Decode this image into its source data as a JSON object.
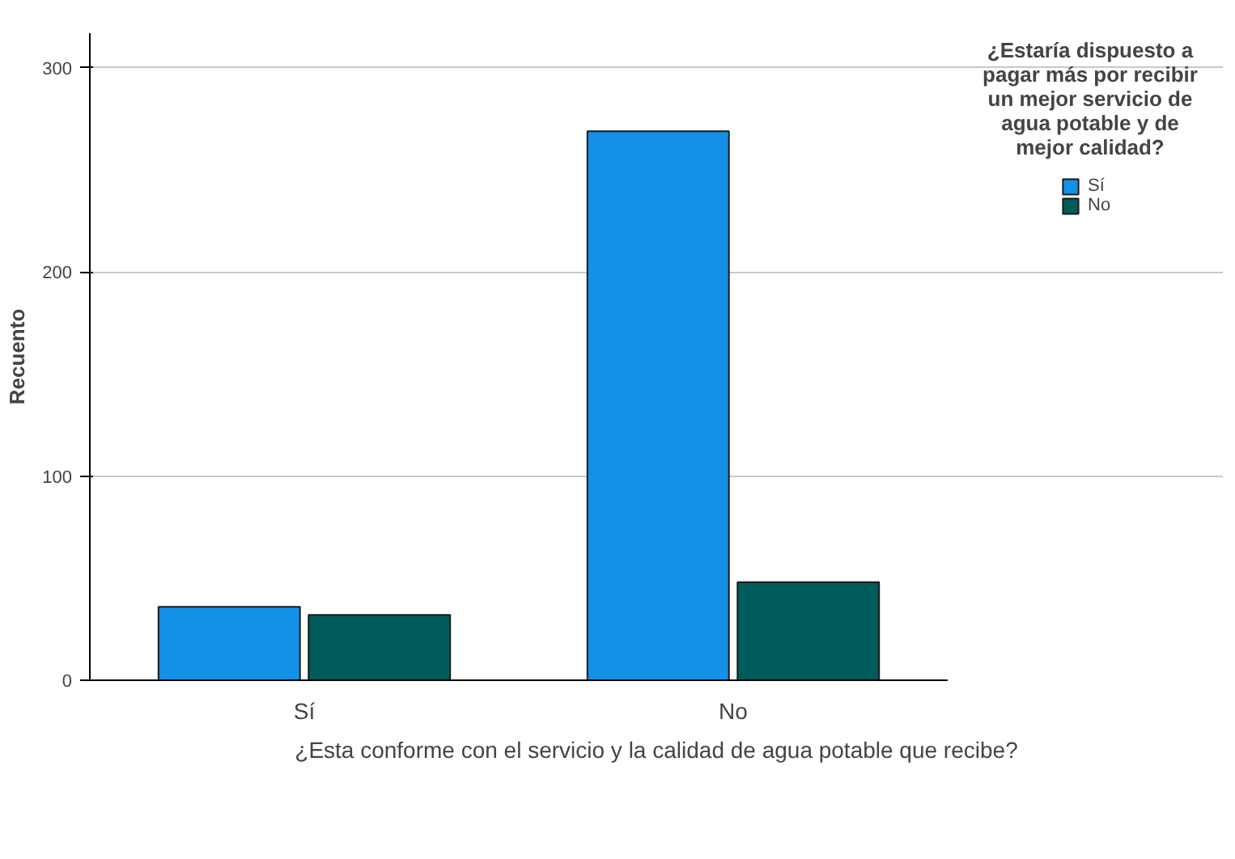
{
  "chart_data": {
    "type": "bar",
    "xlabel": "¿Esta conforme con el servicio y la calidad de agua potable que recibe?",
    "ylabel": "Recuento",
    "legend_title": "¿Estaría dispuesto a pagar más por recibir un mejor servicio de agua potable y de mejor calidad?",
    "categories": [
      "Sí",
      "No"
    ],
    "series": [
      {
        "name": "Sí",
        "color": "#1490e6",
        "values": [
          36,
          269
        ]
      },
      {
        "name": "No",
        "color": "#005c5a",
        "values": [
          32,
          48
        ]
      }
    ],
    "ylim": [
      0,
      317
    ],
    "yticks": [
      0,
      100,
      200,
      300
    ],
    "grid": "y",
    "legend": "top right"
  }
}
